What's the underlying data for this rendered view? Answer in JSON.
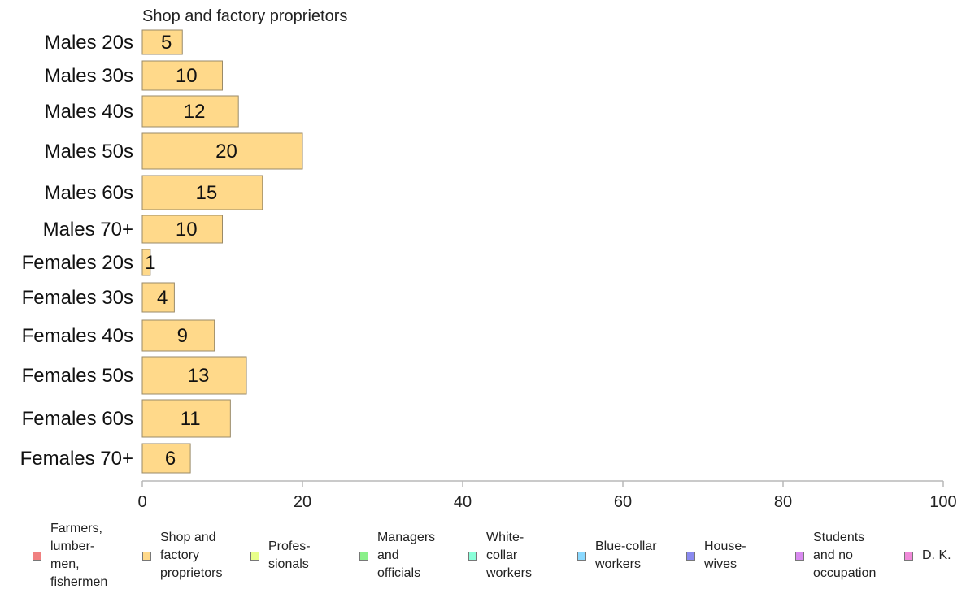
{
  "chart_data": {
    "type": "bar",
    "orientation": "horizontal",
    "title": "Shop and factory proprietors",
    "categories": [
      "Males 20s",
      "Males 30s",
      "Males 40s",
      "Males 50s",
      "Males 60s",
      "Males 70+",
      "Females 20s",
      "Females 30s",
      "Females 40s",
      "Females 50s",
      "Females 60s",
      "Females 70+"
    ],
    "values": [
      5,
      10,
      12,
      20,
      15,
      10,
      1,
      4,
      9,
      13,
      11,
      6
    ],
    "xlim": [
      0,
      100
    ],
    "xticks": [
      0,
      20,
      40,
      60,
      80,
      100
    ],
    "grid": false,
    "legend_position": "bottom",
    "bar_color": "#FFD98A"
  },
  "legend": [
    {
      "label": "Farmers,\nlumber-\nmen,\nfishermen",
      "color": "#F08080"
    },
    {
      "label": "Shop and\nfactory\nproprietors",
      "color": "#FFD98A"
    },
    {
      "label": "Profes-\nsionals",
      "color": "#E8FF8A"
    },
    {
      "label": "Managers\nand\nofficials",
      "color": "#8AF08A"
    },
    {
      "label": "White-\ncollar\nworkers",
      "color": "#8AFFD9"
    },
    {
      "label": "Blue-collar\nworkers",
      "color": "#8AD9FF"
    },
    {
      "label": "House-\nwives",
      "color": "#8A8AF0"
    },
    {
      "label": "Students\nand no\noccupation",
      "color": "#D98AF0"
    },
    {
      "label": "D. K.",
      "color": "#F08AD9"
    }
  ]
}
